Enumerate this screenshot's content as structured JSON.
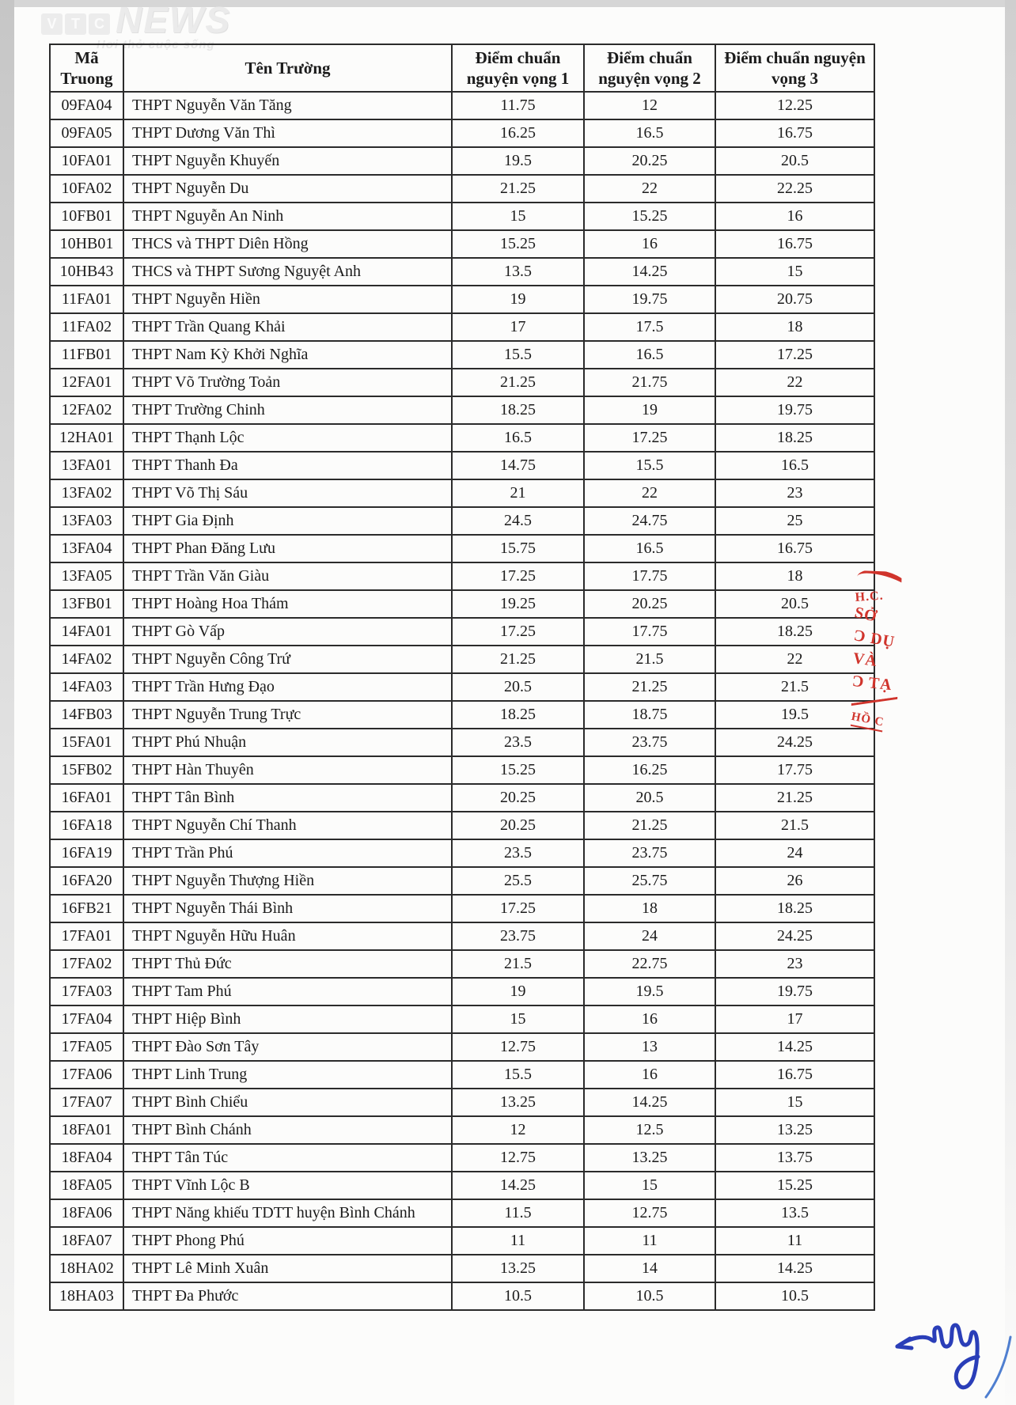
{
  "watermark": {
    "letters": [
      "V",
      "T",
      "C"
    ],
    "name": "NEWS",
    "tagline": "Hơi thở cuộc sống"
  },
  "table": {
    "columns": [
      "Mã Truong",
      "Tên Trường",
      "Điểm chuẩn nguyện vọng 1",
      "Điểm chuẩn nguyện vọng 2",
      "Điểm chuẩn nguyện vọng 3"
    ],
    "rows": [
      [
        "09FA04",
        "THPT Nguyễn Văn Tăng",
        "11.75",
        "12",
        "12.25"
      ],
      [
        "09FA05",
        "THPT Dương Văn Thì",
        "16.25",
        "16.5",
        "16.75"
      ],
      [
        "10FA01",
        "THPT Nguyễn Khuyến",
        "19.5",
        "20.25",
        "20.5"
      ],
      [
        "10FA02",
        "THPT Nguyễn Du",
        "21.25",
        "22",
        "22.25"
      ],
      [
        "10FB01",
        "THPT Nguyễn An Ninh",
        "15",
        "15.25",
        "16"
      ],
      [
        "10HB01",
        "THCS và THPT Diên Hồng",
        "15.25",
        "16",
        "16.75"
      ],
      [
        "10HB43",
        "THCS và THPT Sương Nguyệt Anh",
        "13.5",
        "14.25",
        "15"
      ],
      [
        "11FA01",
        "THPT Nguyễn Hiền",
        "19",
        "19.75",
        "20.75"
      ],
      [
        "11FA02",
        "THPT Trần Quang Khải",
        "17",
        "17.5",
        "18"
      ],
      [
        "11FB01",
        "THPT Nam Kỳ Khởi Nghĩa",
        "15.5",
        "16.5",
        "17.25"
      ],
      [
        "12FA01",
        "THPT Võ Trường Toản",
        "21.25",
        "21.75",
        "22"
      ],
      [
        "12FA02",
        "THPT Trường Chinh",
        "18.25",
        "19",
        "19.75"
      ],
      [
        "12HA01",
        "THPT Thạnh Lộc",
        "16.5",
        "17.25",
        "18.25"
      ],
      [
        "13FA01",
        "THPT Thanh Đa",
        "14.75",
        "15.5",
        "16.5"
      ],
      [
        "13FA02",
        "THPT Võ Thị Sáu",
        "21",
        "22",
        "23"
      ],
      [
        "13FA03",
        "THPT Gia Định",
        "24.5",
        "24.75",
        "25"
      ],
      [
        "13FA04",
        "THPT Phan Đăng Lưu",
        "15.75",
        "16.5",
        "16.75"
      ],
      [
        "13FA05",
        "THPT Trần Văn Giàu",
        "17.25",
        "17.75",
        "18"
      ],
      [
        "13FB01",
        "THPT Hoàng Hoa Thám",
        "19.25",
        "20.25",
        "20.5"
      ],
      [
        "14FA01",
        "THPT Gò Vấp",
        "17.25",
        "17.75",
        "18.25"
      ],
      [
        "14FA02",
        "THPT Nguyễn Công Trứ",
        "21.25",
        "21.5",
        "22"
      ],
      [
        "14FA03",
        "THPT Trần Hưng Đạo",
        "20.5",
        "21.25",
        "21.5"
      ],
      [
        "14FB03",
        "THPT Nguyễn Trung Trực",
        "18.25",
        "18.75",
        "19.5"
      ],
      [
        "15FA01",
        "THPT Phú Nhuận",
        "23.5",
        "23.75",
        "24.25"
      ],
      [
        "15FB02",
        "THPT Hàn Thuyên",
        "15.25",
        "16.25",
        "17.75"
      ],
      [
        "16FA01",
        "THPT Tân Bình",
        "20.25",
        "20.5",
        "21.25"
      ],
      [
        "16FA18",
        "THPT Nguyễn Chí Thanh",
        "20.25",
        "21.25",
        "21.5"
      ],
      [
        "16FA19",
        "THPT Trần Phú",
        "23.5",
        "23.75",
        "24"
      ],
      [
        "16FA20",
        "THPT Nguyễn Thượng Hiền",
        "25.5",
        "25.75",
        "26"
      ],
      [
        "16FB21",
        "THPT Nguyễn Thái Bình",
        "17.25",
        "18",
        "18.25"
      ],
      [
        "17FA01",
        "THPT Nguyễn Hữu Huân",
        "23.75",
        "24",
        "24.25"
      ],
      [
        "17FA02",
        "THPT Thủ Đức",
        "21.5",
        "22.75",
        "23"
      ],
      [
        "17FA03",
        "THPT Tam Phú",
        "19",
        "19.5",
        "19.75"
      ],
      [
        "17FA04",
        "THPT Hiệp Bình",
        "15",
        "16",
        "17"
      ],
      [
        "17FA05",
        "THPT Đào Sơn Tây",
        "12.75",
        "13",
        "14.25"
      ],
      [
        "17FA06",
        "THPT Linh Trung",
        "15.5",
        "16",
        "16.75"
      ],
      [
        "17FA07",
        "THPT Bình Chiểu",
        "13.25",
        "14.25",
        "15"
      ],
      [
        "18FA01",
        "THPT Bình Chánh",
        "12",
        "12.5",
        "13.25"
      ],
      [
        "18FA04",
        "THPT Tân Túc",
        "12.75",
        "13.25",
        "13.75"
      ],
      [
        "18FA05",
        "THPT Vĩnh Lộc B",
        "14.25",
        "15",
        "15.25"
      ],
      [
        "18FA06",
        "THPT Năng khiếu TDTT huyện Bình Chánh",
        "11.5",
        "12.75",
        "13.5"
      ],
      [
        "18FA07",
        "THPT Phong Phú",
        "11",
        "11",
        "11"
      ],
      [
        "18HA02",
        "THPT Lê Minh Xuân",
        "13.25",
        "14",
        "14.25"
      ],
      [
        "18HA03",
        "THPT Đa Phước",
        "10.5",
        "10.5",
        "10.5"
      ]
    ],
    "cell_names": [
      "school-code",
      "school-name",
      "score-nv1",
      "score-nv2",
      "score-nv3"
    ]
  },
  "stamp": {
    "color": "#d0342c",
    "fragments": [
      "H.C.",
      "SỞ",
      "Ɔ DỤ",
      "VÀ",
      "Ɔ TẠ",
      "HỒ C"
    ]
  },
  "signature": {
    "ink_color": "#2a3eb8",
    "tail_color": "#4f7fd0"
  }
}
